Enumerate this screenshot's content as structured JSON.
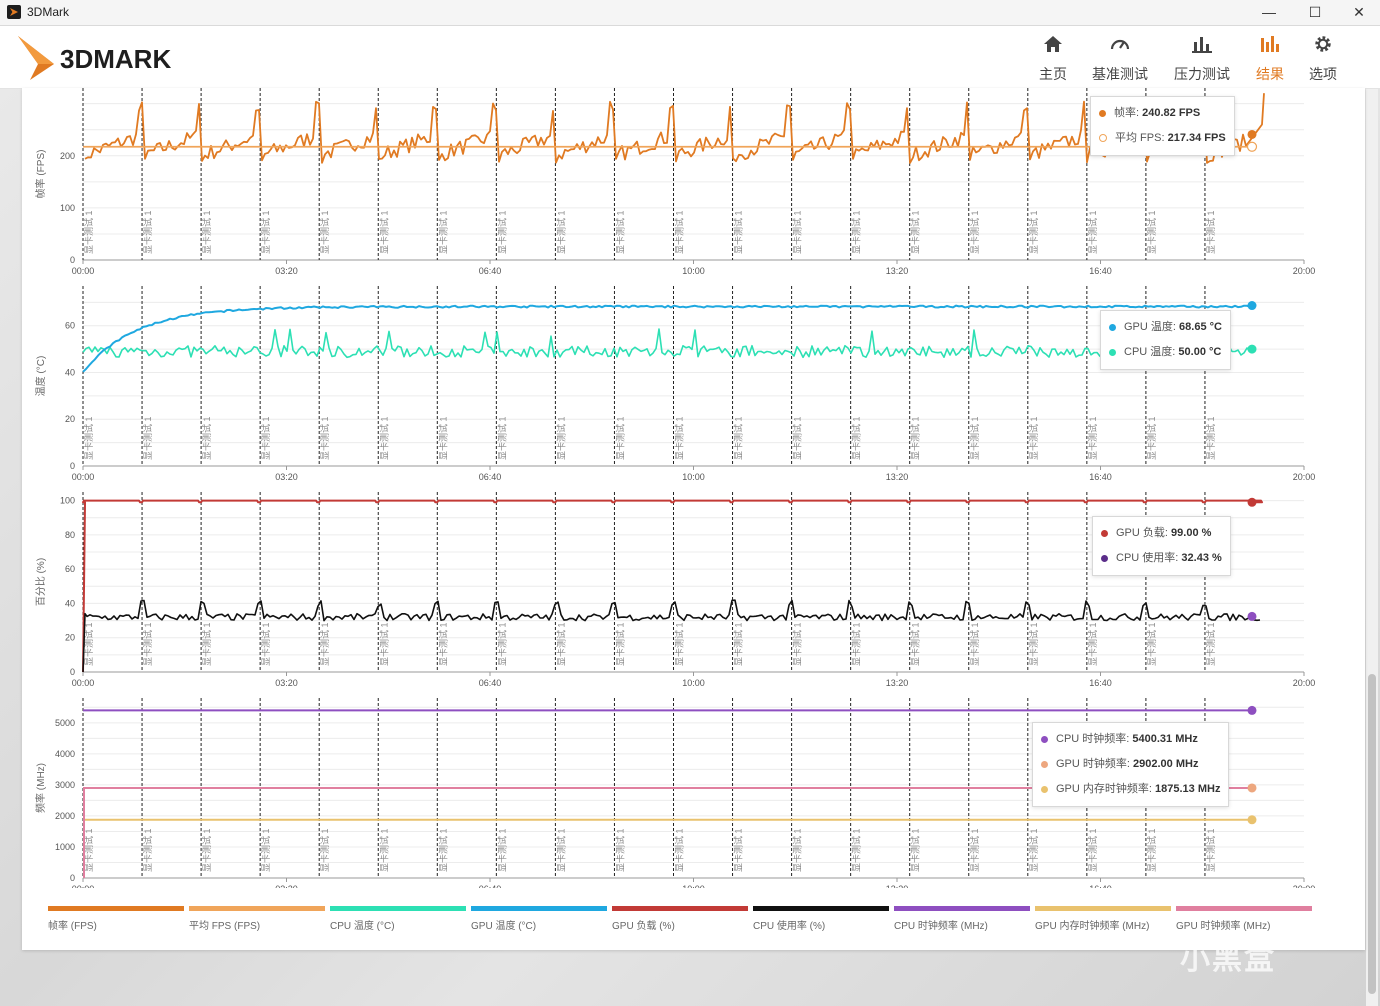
{
  "window": {
    "title": "3DMark"
  },
  "brand": {
    "name": "3DMARK"
  },
  "nav": [
    {
      "label": "主页",
      "icon": "home-icon"
    },
    {
      "label": "基准测试",
      "icon": "gauge-icon"
    },
    {
      "label": "压力测试",
      "icon": "bar-chart-icon"
    },
    {
      "label": "结果",
      "icon": "results-icon",
      "active": true
    },
    {
      "label": "选项",
      "icon": "gear-icon"
    }
  ],
  "colors": {
    "accent": "#e07a22",
    "fps": "#e07a22",
    "avg_fps": "#f0a55a",
    "cpu_temp": "#2de0b4",
    "gpu_temp": "#1fa8e0",
    "gpu_load": "#c23a36",
    "cpu_usage": "#111111",
    "cpu_clock": "#8e4fc0",
    "gpu_mem_clock": "#e9c26e",
    "gpu_clock": "#e07f9f"
  },
  "marker_label": "显卡测试 1",
  "chart_data": [
    {
      "type": "line",
      "ylabel": "帧率 (FPS)",
      "yticks": [
        0,
        100,
        200
      ],
      "ylim": [
        0,
        330
      ],
      "xticks": [
        "00:00",
        "03:20",
        "06:40",
        "10:00",
        "13:20",
        "16:40",
        "20:00"
      ],
      "xlim_seconds": [
        0,
        1200
      ],
      "loop_markers": 20,
      "series": [
        {
          "name": "帧率",
          "unit": "FPS",
          "current": "240.82 FPS",
          "base": 200,
          "peak": 305
        },
        {
          "name": "平均 FPS",
          "unit": "FPS",
          "current": "217.34 FPS",
          "value": 217.34
        }
      ]
    },
    {
      "type": "line",
      "ylabel": "温度 (°C)",
      "yticks": [
        0,
        20,
        40,
        60
      ],
      "ylim": [
        0,
        77
      ],
      "xticks": [
        "00:00",
        "03:20",
        "06:40",
        "10:00",
        "13:20",
        "16:40",
        "20:00"
      ],
      "loop_markers": 20,
      "series": [
        {
          "name": "GPU 温度",
          "current": "68.65 °C",
          "value": 68.65
        },
        {
          "name": "CPU 温度",
          "current": "50.00 °C",
          "value": 50.0
        }
      ]
    },
    {
      "type": "line",
      "ylabel": "百分比 (%)",
      "yticks": [
        0,
        20,
        40,
        60,
        80,
        100
      ],
      "ylim": [
        0,
        105
      ],
      "xticks": [
        "00:00",
        "03:20",
        "06:40",
        "10:00",
        "13:20",
        "16:40",
        "20:00"
      ],
      "loop_markers": 20,
      "series": [
        {
          "name": "GPU 负载",
          "current": "99.00 %",
          "value": 99.0
        },
        {
          "name": "CPU 使用率",
          "current": "32.43 %",
          "value": 32.43
        }
      ]
    },
    {
      "type": "line",
      "ylabel": "频率 (MHz)",
      "yticks": [
        0,
        1000,
        2000,
        3000,
        4000,
        5000
      ],
      "ylim": [
        0,
        5800
      ],
      "xticks": [
        "00:00",
        "03:20",
        "06:40",
        "10:00",
        "13:20",
        "16:40",
        "20:00"
      ],
      "loop_markers": 20,
      "series": [
        {
          "name": "CPU 时钟频率",
          "current": "5400.31 MHz",
          "value": 5400.31
        },
        {
          "name": "GPU 时钟频率",
          "current": "2902.00 MHz",
          "value": 2902.0
        },
        {
          "name": "GPU 内存时钟频率",
          "current": "1875.13 MHz",
          "value": 1875.13
        }
      ]
    }
  ],
  "tooltips": [
    [
      {
        "label": "帧率",
        "value": "240.82 FPS"
      },
      {
        "label": "平均 FPS",
        "value": "217.34 FPS"
      }
    ],
    [
      {
        "label": "GPU 温度",
        "value": "68.65 °C"
      },
      {
        "label": "CPU 温度",
        "value": "50.00 °C"
      }
    ],
    [
      {
        "label": "GPU 负载",
        "value": "99.00 %"
      },
      {
        "label": "CPU 使用率",
        "value": "32.43 %"
      }
    ],
    [
      {
        "label": "CPU 时钟频率",
        "value": "5400.31 MHz"
      },
      {
        "label": "GPU 时钟频率",
        "value": "2902.00 MHz"
      },
      {
        "label": "GPU 内存时钟频率",
        "value": "1875.13 MHz"
      }
    ]
  ],
  "legend": [
    {
      "label": "帧率 (FPS)",
      "color": "#e07a22"
    },
    {
      "label": "平均 FPS (FPS)",
      "color": "#f0a55a"
    },
    {
      "label": "CPU 温度 (°C)",
      "color": "#2de0b4"
    },
    {
      "label": "GPU 温度 (°C)",
      "color": "#1fa8e0"
    },
    {
      "label": "GPU 负载 (%)",
      "color": "#c23a36"
    },
    {
      "label": "CPU 使用率 (%)",
      "color": "#111111"
    },
    {
      "label": "CPU 时钟频率 (MHz)",
      "color": "#8e4fc0"
    },
    {
      "label": "GPU 内存时钟频率 (MHz)",
      "color": "#e9c26e"
    },
    {
      "label": "GPU 时钟频率 (MHz)",
      "color": "#e07f9f"
    }
  ],
  "watermark": "小黑盒"
}
